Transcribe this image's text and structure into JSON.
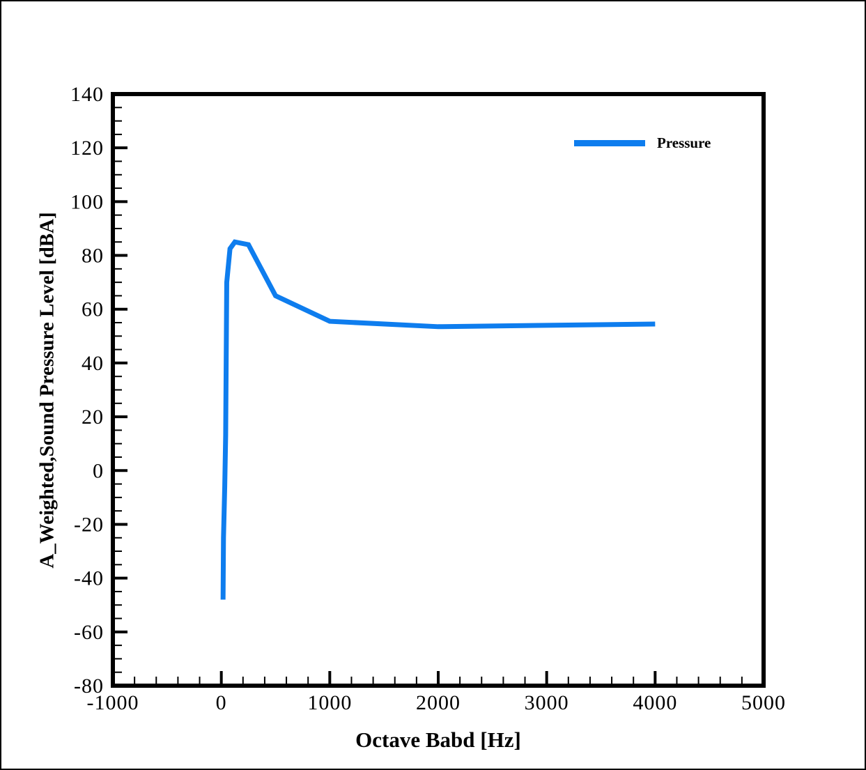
{
  "figure": {
    "background": "#ffffff",
    "frame_color": "#000000"
  },
  "chart_data": {
    "type": "line",
    "title": "",
    "xlabel": "Octave Babd [Hz]",
    "ylabel": "A_Weighted,Sound Pressure Level [dBA]",
    "xlim": [
      -1000,
      5000
    ],
    "ylim": [
      -80,
      140
    ],
    "x_major_tick_step": 1000,
    "x_minor_tick_step": 200,
    "y_major_tick_step": 20,
    "y_minor_tick_step": 5,
    "grid": false,
    "tick_direction": "in",
    "axis_color": "#000000",
    "legend": {
      "position": "top-right-inside",
      "label": "Pressure"
    },
    "series": [
      {
        "name": "Pressure",
        "color": "#0e7dee",
        "line_width": 7,
        "x": [
          16,
          20,
          31.5,
          40,
          50,
          80,
          125,
          250,
          500,
          1000,
          2000,
          4000
        ],
        "y": [
          -48,
          -25,
          -6,
          13,
          70,
          82.5,
          85,
          84,
          65,
          55.5,
          53.5,
          54.5
        ]
      }
    ]
  }
}
